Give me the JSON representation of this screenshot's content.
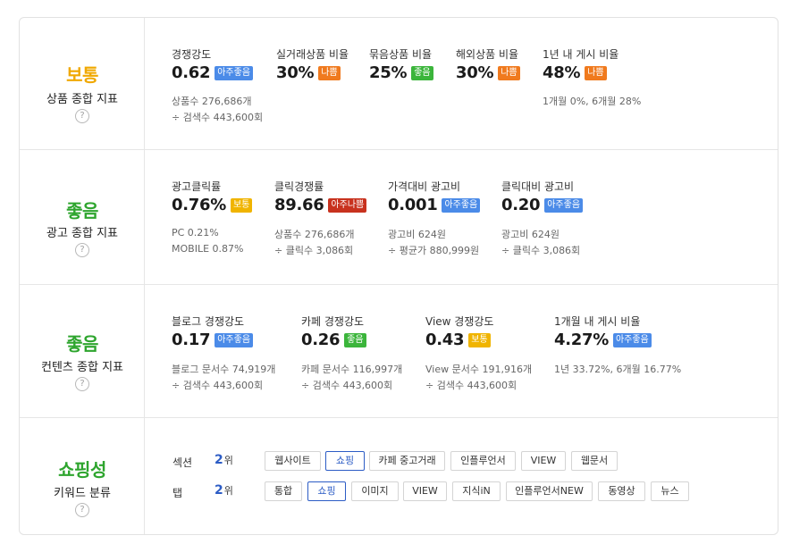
{
  "colors": {
    "normal": "#f0a800",
    "good": "#2ea52e",
    "badge_very_good": "#4b8be8",
    "badge_good": "#3bb53b",
    "badge_normal": "#f0b400",
    "badge_bad": "#f07a1e",
    "badge_very_bad": "#c8321e"
  },
  "help_symbol": "?",
  "rows": [
    {
      "grade": "보통",
      "label": "상품 종합 지표",
      "metrics": [
        {
          "title": "경쟁강도",
          "value": "0.62",
          "badge": "아주좋음",
          "badge_type": "very_good",
          "sub1": "상품수 276,686개",
          "sub2": "÷ 검색수 443,600회"
        },
        {
          "title": "실거래상품 비율",
          "value": "30%",
          "badge": "나쁨",
          "badge_type": "bad",
          "sub1": "",
          "sub2": ""
        },
        {
          "title": "묶음상품 비율",
          "value": "25%",
          "badge": "좋음",
          "badge_type": "good",
          "sub1": "",
          "sub2": ""
        },
        {
          "title": "해외상품 비율",
          "value": "30%",
          "badge": "나쁨",
          "badge_type": "bad",
          "sub1": "",
          "sub2": ""
        },
        {
          "title": "1년 내 게시 비율",
          "value": "48%",
          "badge": "나쁨",
          "badge_type": "bad",
          "sub1": "1개월 0%, 6개월 28%",
          "sub2": ""
        }
      ]
    },
    {
      "grade": "좋음",
      "label": "광고 종합 지표",
      "metrics": [
        {
          "title": "광고클릭률",
          "value": "0.76%",
          "badge": "보통",
          "badge_type": "normal",
          "sub1": "PC 0.21%",
          "sub2": "MOBILE 0.87%"
        },
        {
          "title": "클릭경쟁률",
          "value": "89.66",
          "badge": "아주나쁨",
          "badge_type": "very_bad",
          "sub1": "상품수 276,686개",
          "sub2": "÷ 클릭수 3,086회"
        },
        {
          "title": "가격대비 광고비",
          "value": "0.001",
          "badge": "아주좋음",
          "badge_type": "very_good",
          "sub1": "광고비 624원",
          "sub2": "÷ 평균가 880,999원"
        },
        {
          "title": "클릭대비 광고비",
          "value": "0.20",
          "badge": "아주좋음",
          "badge_type": "very_good",
          "sub1": "광고비 624원",
          "sub2": "÷ 클릭수 3,086회"
        }
      ]
    },
    {
      "grade": "좋음",
      "label": "컨텐츠 종합 지표",
      "metrics": [
        {
          "title": "블로그 경쟁강도",
          "value": "0.17",
          "badge": "아주좋음",
          "badge_type": "very_good",
          "sub1": "블로그 문서수 74,919개",
          "sub2": "÷ 검색수 443,600회"
        },
        {
          "title": "카페 경쟁강도",
          "value": "0.26",
          "badge": "좋음",
          "badge_type": "good",
          "sub1": "카페 문서수 116,997개",
          "sub2": "÷ 검색수 443,600회"
        },
        {
          "title": "View 경쟁강도",
          "value": "0.43",
          "badge": "보통",
          "badge_type": "normal",
          "sub1": "View 문서수 191,916개",
          "sub2": "÷ 검색수 443,600회"
        },
        {
          "title": "1개월 내 게시 비율",
          "value": "4.27%",
          "badge": "아주좋음",
          "badge_type": "very_good",
          "sub1": "1년 33.72%, 6개월 16.77%",
          "sub2": ""
        }
      ]
    },
    {
      "grade": "쇼핑성",
      "label": "키워드 분류"
    }
  ],
  "classification": {
    "section": {
      "label": "섹션",
      "rank": "2",
      "rank_suffix": "위",
      "chips": [
        "웹사이트",
        "쇼핑",
        "카페 중고거래",
        "인플루언서",
        "VIEW",
        "웹문서"
      ],
      "selected": "쇼핑"
    },
    "tab": {
      "label": "탭",
      "rank": "2",
      "rank_suffix": "위",
      "chips": [
        "통합",
        "쇼핑",
        "이미지",
        "VIEW",
        "지식iN",
        "인플루언서NEW",
        "동영상",
        "뉴스"
      ],
      "selected": "쇼핑"
    }
  }
}
